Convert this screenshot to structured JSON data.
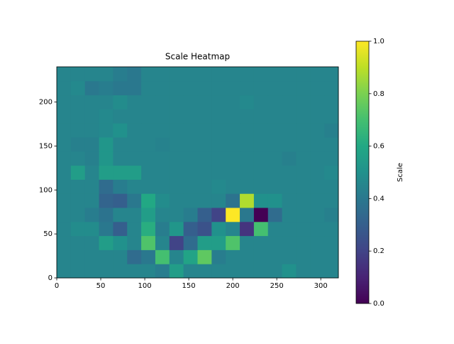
{
  "chart_data": {
    "type": "heatmap",
    "title": "Scale Heatmap",
    "colormap": "viridis",
    "xlim": [
      0,
      320
    ],
    "ylim": [
      0,
      240
    ],
    "xticks": [
      0,
      50,
      100,
      150,
      200,
      250,
      300
    ],
    "yticks": [
      0,
      50,
      100,
      150,
      200
    ],
    "values": [
      [
        0.45,
        0.45,
        0.45,
        0.45,
        0.45,
        0.45,
        0.45,
        0.42,
        0.55,
        0.45,
        0.45,
        0.45,
        0.45,
        0.45,
        0.45,
        0.45,
        0.5,
        0.45,
        0.45,
        0.45
      ],
      [
        0.45,
        0.45,
        0.45,
        0.45,
        0.45,
        0.35,
        0.4,
        0.7,
        0.45,
        0.58,
        0.75,
        0.42,
        0.45,
        0.45,
        0.45,
        0.45,
        0.45,
        0.45,
        0.45,
        0.45
      ],
      [
        0.45,
        0.45,
        0.45,
        0.55,
        0.5,
        0.45,
        0.72,
        0.45,
        0.2,
        0.35,
        0.55,
        0.55,
        0.72,
        0.45,
        0.45,
        0.45,
        0.45,
        0.45,
        0.45,
        0.45
      ],
      [
        0.45,
        0.48,
        0.48,
        0.4,
        0.3,
        0.45,
        0.62,
        0.42,
        0.52,
        0.3,
        0.25,
        0.5,
        0.45,
        0.15,
        0.7,
        0.45,
        0.45,
        0.45,
        0.45,
        0.45
      ],
      [
        0.45,
        0.45,
        0.42,
        0.38,
        0.45,
        0.45,
        0.55,
        0.45,
        0.45,
        0.42,
        0.3,
        0.2,
        1.0,
        0.4,
        0.0,
        0.35,
        0.45,
        0.45,
        0.45,
        0.43
      ],
      [
        0.45,
        0.45,
        0.45,
        0.32,
        0.3,
        0.4,
        0.6,
        0.48,
        0.45,
        0.45,
        0.45,
        0.45,
        0.38,
        0.88,
        0.5,
        0.5,
        0.45,
        0.45,
        0.45,
        0.45
      ],
      [
        0.45,
        0.45,
        0.45,
        0.35,
        0.42,
        0.45,
        0.45,
        0.45,
        0.45,
        0.45,
        0.45,
        0.47,
        0.45,
        0.45,
        0.45,
        0.45,
        0.45,
        0.45,
        0.45,
        0.45
      ],
      [
        0.45,
        0.55,
        0.45,
        0.55,
        0.55,
        0.55,
        0.45,
        0.45,
        0.45,
        0.45,
        0.45,
        0.45,
        0.45,
        0.45,
        0.45,
        0.45,
        0.45,
        0.45,
        0.45,
        0.47
      ],
      [
        0.45,
        0.45,
        0.43,
        0.52,
        0.45,
        0.45,
        0.45,
        0.45,
        0.45,
        0.45,
        0.45,
        0.45,
        0.45,
        0.45,
        0.45,
        0.45,
        0.43,
        0.45,
        0.45,
        0.45
      ],
      [
        0.45,
        0.43,
        0.43,
        0.52,
        0.45,
        0.45,
        0.45,
        0.44,
        0.45,
        0.45,
        0.45,
        0.45,
        0.45,
        0.45,
        0.45,
        0.45,
        0.45,
        0.45,
        0.45,
        0.45
      ],
      [
        0.45,
        0.45,
        0.45,
        0.47,
        0.5,
        0.45,
        0.45,
        0.45,
        0.45,
        0.45,
        0.45,
        0.45,
        0.45,
        0.45,
        0.45,
        0.45,
        0.45,
        0.45,
        0.45,
        0.43
      ],
      [
        0.45,
        0.45,
        0.45,
        0.47,
        0.45,
        0.45,
        0.45,
        0.45,
        0.45,
        0.45,
        0.45,
        0.45,
        0.45,
        0.45,
        0.45,
        0.45,
        0.45,
        0.45,
        0.45,
        0.45
      ],
      [
        0.45,
        0.45,
        0.45,
        0.45,
        0.48,
        0.45,
        0.45,
        0.45,
        0.45,
        0.45,
        0.45,
        0.45,
        0.45,
        0.47,
        0.45,
        0.45,
        0.45,
        0.45,
        0.45,
        0.45
      ],
      [
        0.45,
        0.47,
        0.4,
        0.42,
        0.4,
        0.4,
        0.45,
        0.45,
        0.45,
        0.45,
        0.45,
        0.45,
        0.45,
        0.45,
        0.45,
        0.45,
        0.45,
        0.45,
        0.45,
        0.45
      ],
      [
        0.45,
        0.45,
        0.45,
        0.45,
        0.42,
        0.4,
        0.45,
        0.45,
        0.45,
        0.45,
        0.45,
        0.45,
        0.45,
        0.45,
        0.45,
        0.45,
        0.45,
        0.45,
        0.45,
        0.45
      ]
    ],
    "colorbar": {
      "label": "Scale",
      "lim": [
        0,
        1
      ],
      "ticks": [
        {
          "value": 0,
          "label": "0.0"
        },
        0.2,
        0.4,
        0.6,
        0.8,
        {
          "value": 1,
          "label": "1.0"
        }
      ]
    }
  }
}
